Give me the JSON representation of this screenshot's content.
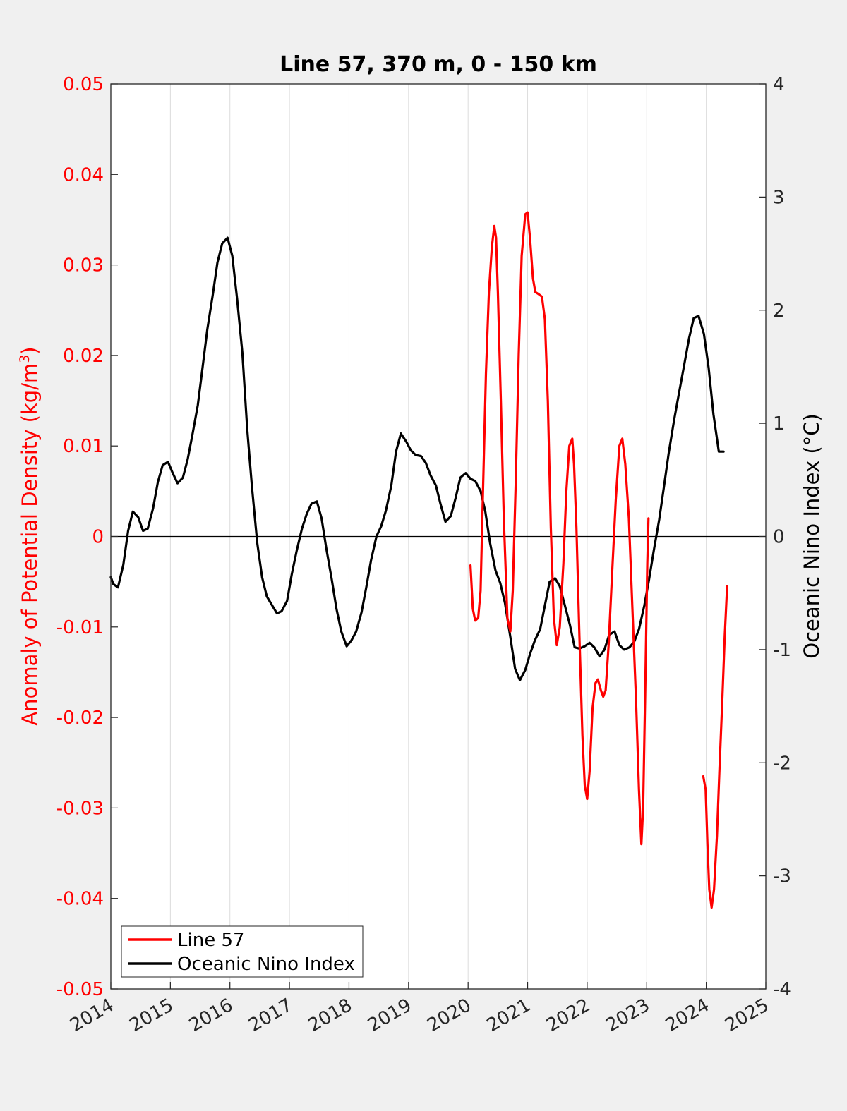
{
  "chart_data": {
    "type": "line",
    "title": "Line 57, 370 m, 0 - 150 km",
    "xlabel": "",
    "x_ticks": [
      "2014",
      "2015",
      "2016",
      "2017",
      "2018",
      "2019",
      "2020",
      "2021",
      "2022",
      "2023",
      "2024",
      "2025"
    ],
    "xlim": [
      2014,
      2025
    ],
    "y_left": {
      "label_prefix": "Anomaly of Potential Density (kg/m",
      "label_sup": "3",
      "label_suffix": ")",
      "lim": [
        -0.05,
        0.05
      ],
      "ticks": [
        "0.05",
        "0.04",
        "0.03",
        "0.02",
        "0.01",
        "0",
        "-0.01",
        "-0.02",
        "-0.03",
        "-0.04",
        "-0.05"
      ],
      "color": "#ff0000"
    },
    "y_right": {
      "label": "Oceanic Nino Index (°C)",
      "lim": [
        -4,
        4
      ],
      "ticks": [
        "4",
        "3",
        "2",
        "1",
        "0",
        "-1",
        "-2",
        "-3",
        "-4"
      ],
      "color": "#000000"
    },
    "grid": "vertical",
    "zero_line": true,
    "legend_position": "bottom-left",
    "series": [
      {
        "name": "Line 57",
        "axis": "left",
        "color": "#ff0000",
        "segments": [
          [
            [
              2020.04,
              -0.0032
            ],
            [
              2020.08,
              -0.008
            ],
            [
              2020.12,
              -0.0093
            ],
            [
              2020.17,
              -0.009
            ],
            [
              2020.21,
              -0.006
            ],
            [
              2020.25,
              0.005
            ],
            [
              2020.3,
              0.018
            ],
            [
              2020.35,
              0.027
            ],
            [
              2020.4,
              0.032
            ],
            [
              2020.44,
              0.0343
            ],
            [
              2020.47,
              0.033
            ],
            [
              2020.5,
              0.027
            ],
            [
              2020.55,
              0.015
            ],
            [
              2020.6,
              0.002
            ],
            [
              2020.66,
              -0.009
            ],
            [
              2020.71,
              -0.0105
            ],
            [
              2020.75,
              -0.006
            ],
            [
              2020.8,
              0.006
            ],
            [
              2020.85,
              0.02
            ],
            [
              2020.9,
              0.031
            ],
            [
              2020.96,
              0.0356
            ],
            [
              2021.0,
              0.0358
            ],
            [
              2021.04,
              0.033
            ],
            [
              2021.09,
              0.0285
            ],
            [
              2021.13,
              0.027
            ],
            [
              2021.18,
              0.0268
            ],
            [
              2021.24,
              0.0265
            ],
            [
              2021.29,
              0.024
            ],
            [
              2021.34,
              0.015
            ],
            [
              2021.39,
              0.001
            ],
            [
              2021.44,
              -0.009
            ],
            [
              2021.49,
              -0.012
            ],
            [
              2021.54,
              -0.01
            ],
            [
              2021.6,
              -0.003
            ],
            [
              2021.65,
              0.005
            ],
            [
              2021.7,
              0.01
            ],
            [
              2021.75,
              0.0108
            ],
            [
              2021.78,
              0.008
            ],
            [
              2021.82,
              0.001
            ],
            [
              2021.87,
              -0.011
            ],
            [
              2021.92,
              -0.022
            ],
            [
              2021.96,
              -0.0275
            ],
            [
              2022.0,
              -0.029
            ],
            [
              2022.04,
              -0.026
            ],
            [
              2022.09,
              -0.019
            ],
            [
              2022.14,
              -0.0162
            ],
            [
              2022.18,
              -0.0158
            ],
            [
              2022.23,
              -0.017
            ],
            [
              2022.27,
              -0.0177
            ],
            [
              2022.31,
              -0.017
            ],
            [
              2022.36,
              -0.012
            ],
            [
              2022.42,
              -0.004
            ],
            [
              2022.48,
              0.004
            ],
            [
              2022.54,
              0.01
            ],
            [
              2022.59,
              0.0108
            ],
            [
              2022.64,
              0.008
            ],
            [
              2022.7,
              0.002
            ],
            [
              2022.76,
              -0.008
            ],
            [
              2022.82,
              -0.018
            ],
            [
              2022.87,
              -0.028
            ],
            [
              2022.91,
              -0.034
            ],
            [
              2022.94,
              -0.03
            ],
            [
              2022.98,
              -0.015
            ],
            [
              2023.01,
              -0.003
            ],
            [
              2023.03,
              0.002
            ]
          ],
          [
            [
              2023.95,
              -0.0265
            ],
            [
              2023.99,
              -0.028
            ],
            [
              2024.02,
              -0.034
            ],
            [
              2024.05,
              -0.039
            ],
            [
              2024.09,
              -0.041
            ],
            [
              2024.13,
              -0.039
            ],
            [
              2024.18,
              -0.033
            ],
            [
              2024.22,
              -0.026
            ],
            [
              2024.27,
              -0.018
            ],
            [
              2024.31,
              -0.011
            ],
            [
              2024.35,
              -0.0055
            ]
          ]
        ]
      },
      {
        "name": "Oceanic Nino Index",
        "axis": "right",
        "color": "#000000",
        "x": [
          2014.0,
          2014.04,
          2014.12,
          2014.21,
          2014.29,
          2014.37,
          2014.46,
          2014.54,
          2014.62,
          2014.71,
          2014.79,
          2014.87,
          2014.96,
          2015.04,
          2015.12,
          2015.21,
          2015.29,
          2015.37,
          2015.46,
          2015.54,
          2015.62,
          2015.71,
          2015.79,
          2015.87,
          2015.96,
          2016.04,
          2016.12,
          2016.21,
          2016.29,
          2016.37,
          2016.46,
          2016.54,
          2016.62,
          2016.71,
          2016.79,
          2016.87,
          2016.96,
          2017.04,
          2017.12,
          2017.21,
          2017.29,
          2017.37,
          2017.46,
          2017.54,
          2017.62,
          2017.71,
          2017.79,
          2017.87,
          2017.96,
          2018.04,
          2018.12,
          2018.21,
          2018.29,
          2018.37,
          2018.46,
          2018.54,
          2018.62,
          2018.71,
          2018.79,
          2018.87,
          2018.96,
          2019.04,
          2019.12,
          2019.21,
          2019.29,
          2019.37,
          2019.46,
          2019.54,
          2019.62,
          2019.71,
          2019.79,
          2019.87,
          2019.96,
          2020.04,
          2020.12,
          2020.21,
          2020.29,
          2020.37,
          2020.46,
          2020.54,
          2020.62,
          2020.71,
          2020.79,
          2020.87,
          2020.96,
          2021.04,
          2021.12,
          2021.21,
          2021.29,
          2021.37,
          2021.46,
          2021.54,
          2021.62,
          2021.71,
          2021.79,
          2021.87,
          2021.96,
          2022.04,
          2022.12,
          2022.21,
          2022.29,
          2022.37,
          2022.46,
          2022.54,
          2022.62,
          2022.71,
          2022.79,
          2022.87,
          2022.96,
          2023.04,
          2023.12,
          2023.21,
          2023.29,
          2023.37,
          2023.46,
          2023.54,
          2023.62,
          2023.71,
          2023.79,
          2023.87,
          2023.96,
          2024.04,
          2024.12,
          2024.21,
          2024.29
        ],
        "y": [
          -0.36,
          -0.42,
          -0.45,
          -0.25,
          0.05,
          0.22,
          0.17,
          0.05,
          0.07,
          0.25,
          0.48,
          0.63,
          0.66,
          0.56,
          0.47,
          0.52,
          0.68,
          0.9,
          1.16,
          1.49,
          1.83,
          2.13,
          2.42,
          2.59,
          2.64,
          2.48,
          2.1,
          1.62,
          0.95,
          0.44,
          -0.06,
          -0.36,
          -0.53,
          -0.61,
          -0.68,
          -0.66,
          -0.57,
          -0.33,
          -0.13,
          0.07,
          0.2,
          0.29,
          0.31,
          0.16,
          -0.11,
          -0.38,
          -0.64,
          -0.84,
          -0.97,
          -0.92,
          -0.84,
          -0.67,
          -0.45,
          -0.21,
          0.0,
          0.09,
          0.23,
          0.45,
          0.75,
          0.91,
          0.84,
          0.76,
          0.72,
          0.71,
          0.65,
          0.54,
          0.45,
          0.28,
          0.13,
          0.18,
          0.34,
          0.52,
          0.56,
          0.51,
          0.49,
          0.4,
          0.22,
          -0.06,
          -0.3,
          -0.41,
          -0.59,
          -0.89,
          -1.17,
          -1.27,
          -1.18,
          -1.04,
          -0.92,
          -0.82,
          -0.61,
          -0.4,
          -0.37,
          -0.44,
          -0.6,
          -0.78,
          -0.98,
          -0.99,
          -0.97,
          -0.94,
          -0.98,
          -1.06,
          -1.0,
          -0.87,
          -0.84,
          -0.96,
          -1.0,
          -0.98,
          -0.93,
          -0.82,
          -0.61,
          -0.38,
          -0.12,
          0.15,
          0.44,
          0.74,
          1.03,
          1.26,
          1.49,
          1.75,
          1.93,
          1.95,
          1.79,
          1.49,
          1.08,
          0.75,
          0.75
        ]
      }
    ]
  }
}
